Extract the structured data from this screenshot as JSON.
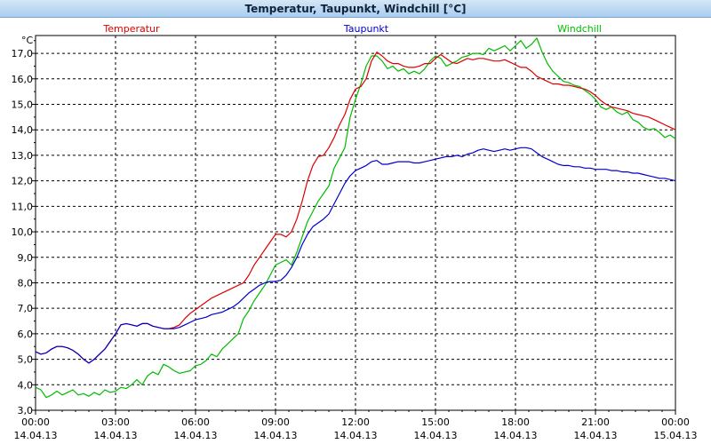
{
  "window": {
    "title": "Temperatur, Taupunkt, Windchill [°C]"
  },
  "chart_data": {
    "type": "line",
    "title": "Temperatur, Taupunkt, Windchill [°C]",
    "ylabel": "°C",
    "ylim": [
      3.0,
      17.7
    ],
    "yticks": [
      3.0,
      4.0,
      5.0,
      6.0,
      7.0,
      8.0,
      9.0,
      10.0,
      11.0,
      12.0,
      13.0,
      14.0,
      15.0,
      16.0,
      17.0
    ],
    "ytick_labels": [
      "3,0",
      "4,0",
      "5,0",
      "6,0",
      "7,0",
      "8,0",
      "9,0",
      "10,0",
      "11,0",
      "12,0",
      "13,0",
      "14,0",
      "15,0",
      "16,0",
      "17,0"
    ],
    "xlim": [
      0,
      24
    ],
    "xticks": [
      {
        "value": 0,
        "time": "00:00",
        "date": "14.04.13"
      },
      {
        "value": 3,
        "time": "03:00",
        "date": "14.04.13"
      },
      {
        "value": 6,
        "time": "06:00",
        "date": "14.04.13"
      },
      {
        "value": 9,
        "time": "09:00",
        "date": "14.04.13"
      },
      {
        "value": 12,
        "time": "12:00",
        "date": "14.04.13"
      },
      {
        "value": 15,
        "time": "15:00",
        "date": "14.04.13"
      },
      {
        "value": 18,
        "time": "18:00",
        "date": "14.04.13"
      },
      {
        "value": 21,
        "time": "21:00",
        "date": "14.04.13"
      },
      {
        "value": 24,
        "time": "00:00",
        "date": "15.04.13"
      }
    ],
    "grid": true,
    "legend_position": "top",
    "series": [
      {
        "name": "Temperatur",
        "color": "#dd0000",
        "x": [
          0,
          0.2,
          0.4,
          0.6,
          0.8,
          1.0,
          1.2,
          1.4,
          1.6,
          1.8,
          2.0,
          2.2,
          2.4,
          2.6,
          2.8,
          3.0,
          3.2,
          3.4,
          3.6,
          3.8,
          4.0,
          4.2,
          4.4,
          4.6,
          4.8,
          5.0,
          5.2,
          5.4,
          5.6,
          5.8,
          6.0,
          6.2,
          6.4,
          6.6,
          6.8,
          7.0,
          7.2,
          7.4,
          7.6,
          7.8,
          8.0,
          8.2,
          8.4,
          8.6,
          8.8,
          9.0,
          9.2,
          9.4,
          9.6,
          9.8,
          10.0,
          10.2,
          10.4,
          10.6,
          10.8,
          11.0,
          11.2,
          11.4,
          11.6,
          11.8,
          12.0,
          12.2,
          12.4,
          12.6,
          12.8,
          13.0,
          13.2,
          13.4,
          13.6,
          13.8,
          14.0,
          14.2,
          14.4,
          14.6,
          14.8,
          15.0,
          15.2,
          15.4,
          15.6,
          15.8,
          16.0,
          16.2,
          16.4,
          16.6,
          16.8,
          17.0,
          17.2,
          17.4,
          17.6,
          17.8,
          18.0,
          18.2,
          18.4,
          18.6,
          18.8,
          19.0,
          19.2,
          19.4,
          19.6,
          19.8,
          20.0,
          20.2,
          20.4,
          20.6,
          20.8,
          21.0,
          21.2,
          21.4,
          21.6,
          21.8,
          22.0,
          22.2,
          22.4,
          22.6,
          22.8,
          23.0,
          23.2,
          23.4,
          23.6,
          23.8,
          24.0
        ],
        "values": [
          5.3,
          5.2,
          5.25,
          5.4,
          5.5,
          5.5,
          5.45,
          5.35,
          5.2,
          5.0,
          4.85,
          5.0,
          5.2,
          5.4,
          5.7,
          6.0,
          6.35,
          6.4,
          6.35,
          6.3,
          6.4,
          6.4,
          6.3,
          6.25,
          6.2,
          6.2,
          6.25,
          6.35,
          6.6,
          6.8,
          6.95,
          7.1,
          7.25,
          7.4,
          7.5,
          7.6,
          7.7,
          7.8,
          7.9,
          8.0,
          8.3,
          8.7,
          9.0,
          9.3,
          9.6,
          9.9,
          9.9,
          9.8,
          10.0,
          10.5,
          11.2,
          12.0,
          12.6,
          12.95,
          13.0,
          13.3,
          13.7,
          14.2,
          14.6,
          15.2,
          15.6,
          15.7,
          16.0,
          16.7,
          17.05,
          16.9,
          16.7,
          16.6,
          16.6,
          16.5,
          16.45,
          16.45,
          16.5,
          16.6,
          16.6,
          16.8,
          16.95,
          16.8,
          16.65,
          16.6,
          16.7,
          16.8,
          16.75,
          16.8,
          16.8,
          16.75,
          16.7,
          16.7,
          16.75,
          16.65,
          16.55,
          16.45,
          16.45,
          16.3,
          16.1,
          16.0,
          15.9,
          15.8,
          15.8,
          15.75,
          15.75,
          15.7,
          15.65,
          15.6,
          15.5,
          15.35,
          15.15,
          15.0,
          14.9,
          14.85,
          14.8,
          14.75,
          14.65,
          14.6,
          14.55,
          14.5,
          14.4,
          14.3,
          14.2,
          14.1,
          14.0
        ]
      },
      {
        "name": "Taupunkt",
        "color": "#0000cc",
        "x": [
          0,
          0.2,
          0.4,
          0.6,
          0.8,
          1.0,
          1.2,
          1.4,
          1.6,
          1.8,
          2.0,
          2.2,
          2.4,
          2.6,
          2.8,
          3.0,
          3.2,
          3.4,
          3.6,
          3.8,
          4.0,
          4.2,
          4.4,
          4.6,
          4.8,
          5.0,
          5.2,
          5.4,
          5.6,
          5.8,
          6.0,
          6.2,
          6.4,
          6.6,
          6.8,
          7.0,
          7.2,
          7.4,
          7.6,
          7.8,
          8.0,
          8.2,
          8.4,
          8.6,
          8.8,
          9.0,
          9.2,
          9.4,
          9.6,
          9.8,
          10.0,
          10.2,
          10.4,
          10.6,
          10.8,
          11.0,
          11.2,
          11.4,
          11.6,
          11.8,
          12.0,
          12.2,
          12.4,
          12.6,
          12.8,
          13.0,
          13.2,
          13.4,
          13.6,
          13.8,
          14.0,
          14.2,
          14.4,
          14.6,
          14.8,
          15.0,
          15.2,
          15.4,
          15.6,
          15.8,
          16.0,
          16.2,
          16.4,
          16.6,
          16.8,
          17.0,
          17.2,
          17.4,
          17.6,
          17.8,
          18.0,
          18.2,
          18.4,
          18.6,
          18.8,
          19.0,
          19.2,
          19.4,
          19.6,
          19.8,
          20.0,
          20.2,
          20.4,
          20.6,
          20.8,
          21.0,
          21.2,
          21.4,
          21.6,
          21.8,
          22.0,
          22.2,
          22.4,
          22.6,
          22.8,
          23.0,
          23.2,
          23.4,
          23.6,
          23.8,
          24.0
        ],
        "values": [
          5.3,
          5.2,
          5.25,
          5.4,
          5.5,
          5.5,
          5.45,
          5.35,
          5.2,
          5.0,
          4.85,
          5.0,
          5.2,
          5.4,
          5.7,
          6.0,
          6.35,
          6.4,
          6.35,
          6.3,
          6.4,
          6.4,
          6.3,
          6.25,
          6.2,
          6.2,
          6.2,
          6.25,
          6.35,
          6.45,
          6.55,
          6.6,
          6.65,
          6.75,
          6.8,
          6.85,
          6.95,
          7.05,
          7.2,
          7.4,
          7.6,
          7.75,
          7.9,
          8.0,
          8.05,
          8.05,
          8.1,
          8.3,
          8.6,
          9.0,
          9.5,
          9.9,
          10.2,
          10.35,
          10.5,
          10.7,
          11.1,
          11.5,
          11.9,
          12.2,
          12.4,
          12.5,
          12.6,
          12.75,
          12.8,
          12.65,
          12.65,
          12.7,
          12.75,
          12.75,
          12.75,
          12.7,
          12.7,
          12.75,
          12.8,
          12.85,
          12.9,
          12.95,
          12.95,
          13.0,
          12.95,
          13.05,
          13.1,
          13.2,
          13.25,
          13.2,
          13.15,
          13.2,
          13.25,
          13.2,
          13.25,
          13.3,
          13.3,
          13.25,
          13.1,
          12.95,
          12.85,
          12.75,
          12.65,
          12.6,
          12.6,
          12.55,
          12.55,
          12.5,
          12.5,
          12.45,
          12.45,
          12.45,
          12.4,
          12.4,
          12.35,
          12.35,
          12.3,
          12.3,
          12.25,
          12.2,
          12.15,
          12.1,
          12.1,
          12.05,
          12.0
        ]
      },
      {
        "name": "Windchill",
        "color": "#00bb00",
        "x": [
          0,
          0.2,
          0.4,
          0.6,
          0.8,
          1.0,
          1.2,
          1.4,
          1.6,
          1.8,
          2.0,
          2.2,
          2.4,
          2.6,
          2.8,
          3.0,
          3.2,
          3.4,
          3.6,
          3.8,
          4.0,
          4.2,
          4.4,
          4.6,
          4.8,
          5.0,
          5.2,
          5.4,
          5.6,
          5.8,
          6.0,
          6.2,
          6.4,
          6.6,
          6.8,
          7.0,
          7.2,
          7.4,
          7.6,
          7.8,
          8.0,
          8.2,
          8.4,
          8.6,
          8.8,
          9.0,
          9.2,
          9.4,
          9.6,
          9.8,
          10.0,
          10.2,
          10.4,
          10.6,
          10.8,
          11.0,
          11.2,
          11.4,
          11.6,
          11.8,
          12.0,
          12.2,
          12.4,
          12.6,
          12.8,
          13.0,
          13.2,
          13.4,
          13.6,
          13.8,
          14.0,
          14.2,
          14.4,
          14.6,
          14.8,
          15.0,
          15.2,
          15.4,
          15.6,
          15.8,
          16.0,
          16.2,
          16.4,
          16.6,
          16.8,
          17.0,
          17.2,
          17.4,
          17.6,
          17.8,
          18.0,
          18.2,
          18.4,
          18.6,
          18.8,
          19.0,
          19.2,
          19.4,
          19.6,
          19.8,
          20.0,
          20.2,
          20.4,
          20.6,
          20.8,
          21.0,
          21.2,
          21.4,
          21.6,
          21.8,
          22.0,
          22.2,
          22.4,
          22.6,
          22.8,
          23.0,
          23.2,
          23.4,
          23.6,
          23.8,
          24.0
        ],
        "values": [
          3.9,
          3.8,
          3.5,
          3.6,
          3.75,
          3.6,
          3.7,
          3.8,
          3.6,
          3.65,
          3.55,
          3.7,
          3.6,
          3.8,
          3.7,
          3.75,
          3.9,
          3.85,
          4.0,
          4.2,
          4.0,
          4.35,
          4.5,
          4.4,
          4.8,
          4.7,
          4.55,
          4.45,
          4.5,
          4.55,
          4.75,
          4.8,
          4.95,
          5.2,
          5.1,
          5.4,
          5.6,
          5.8,
          6.0,
          6.6,
          6.9,
          7.3,
          7.6,
          7.9,
          8.3,
          8.7,
          8.8,
          8.9,
          8.7,
          9.2,
          9.8,
          10.4,
          10.8,
          11.2,
          11.5,
          11.8,
          12.5,
          12.9,
          13.3,
          14.5,
          15.2,
          15.8,
          16.5,
          16.9,
          16.9,
          16.7,
          16.4,
          16.5,
          16.3,
          16.4,
          16.2,
          16.3,
          16.2,
          16.4,
          16.7,
          16.9,
          16.8,
          16.5,
          16.6,
          16.7,
          16.85,
          16.9,
          17.0,
          17.0,
          16.95,
          17.2,
          17.1,
          17.2,
          17.3,
          17.1,
          17.3,
          17.5,
          17.2,
          17.35,
          17.6,
          17.05,
          16.6,
          16.3,
          16.1,
          15.9,
          15.85,
          15.75,
          15.7,
          15.55,
          15.4,
          15.2,
          14.9,
          14.8,
          14.9,
          14.7,
          14.6,
          14.7,
          14.4,
          14.3,
          14.1,
          14.0,
          14.05,
          13.9,
          13.7,
          13.8,
          13.65
        ]
      }
    ]
  }
}
